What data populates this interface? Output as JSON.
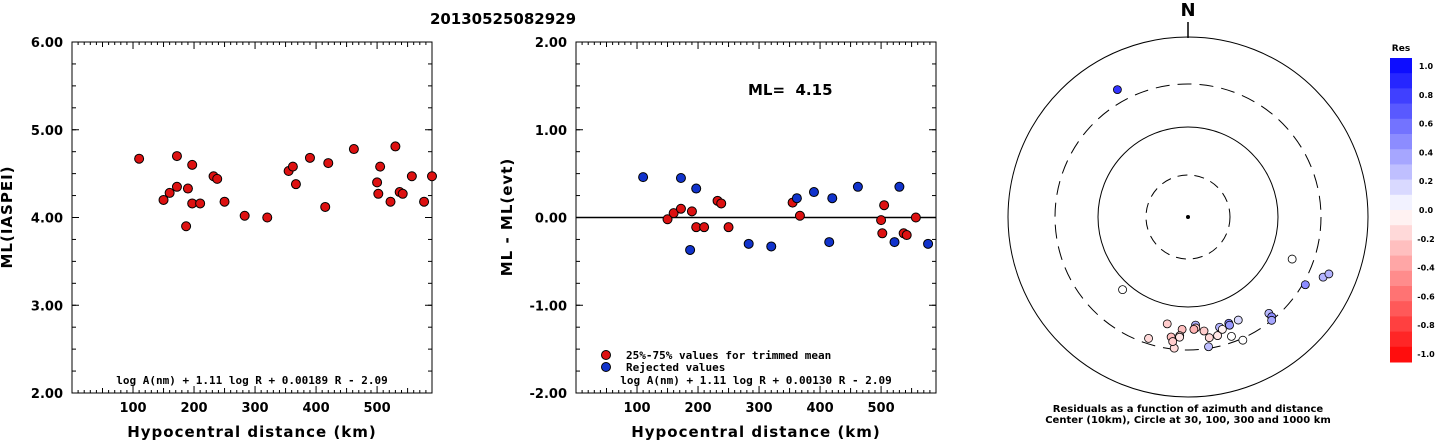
{
  "title": "20130525082929",
  "chart_data": [
    {
      "type": "scatter",
      "xlabel": "Hypocentral distance (km)",
      "ylabel": "ML(IASPEI)",
      "xlim": [
        0,
        590
      ],
      "ylim": [
        2.0,
        6.0
      ],
      "xticks": [
        "100",
        "200",
        "300",
        "400",
        "500"
      ],
      "yticks": [
        "2.00",
        "3.00",
        "4.00",
        "5.00",
        "6.00"
      ],
      "formula": "log A(nm) + 1.11 log R + 0.00189 R - 2.09",
      "series": [
        {
          "color": "#dd1111",
          "points": [
            [
              110,
              4.67
            ],
            [
              150,
              4.2
            ],
            [
              160,
              4.28
            ],
            [
              172,
              4.7
            ],
            [
              172,
              4.35
            ],
            [
              187,
              3.9
            ],
            [
              190,
              4.33
            ],
            [
              197,
              4.6
            ],
            [
              197,
              4.16
            ],
            [
              210,
              4.16
            ],
            [
              232,
              4.47
            ],
            [
              238,
              4.44
            ],
            [
              250,
              4.18
            ],
            [
              283,
              4.02
            ],
            [
              320,
              4.0
            ],
            [
              355,
              4.53
            ],
            [
              362,
              4.58
            ],
            [
              367,
              4.38
            ],
            [
              390,
              4.68
            ],
            [
              415,
              4.12
            ],
            [
              420,
              4.62
            ],
            [
              462,
              4.78
            ],
            [
              500,
              4.4
            ],
            [
              502,
              4.27
            ],
            [
              505,
              4.58
            ],
            [
              522,
              4.18
            ],
            [
              530,
              4.81
            ],
            [
              537,
              4.29
            ],
            [
              542,
              4.27
            ],
            [
              557,
              4.47
            ],
            [
              577,
              4.18
            ],
            [
              590,
              4.47
            ]
          ]
        }
      ]
    },
    {
      "type": "scatter",
      "xlabel": "Hypocentral distance (km)",
      "ylabel": "ML - ML(evt)",
      "xlim": [
        0,
        590
      ],
      "ylim": [
        -2.0,
        2.0
      ],
      "xticks": [
        "100",
        "200",
        "300",
        "400",
        "500"
      ],
      "yticks": [
        "-2.00",
        "-1.00",
        "0.00",
        "1.00",
        "2.00"
      ],
      "annotation": "ML=  4.15",
      "formula": "log A(nm) + 1.11 log R + 0.00130 R - 2.09",
      "legend": [
        "25%-75% values for trimmed mean",
        "Rejected values"
      ],
      "series": [
        {
          "name": "25%-75% values for trimmed mean",
          "color": "#dd1111",
          "points": [
            [
              150,
              -0.02
            ],
            [
              160,
              0.05
            ],
            [
              172,
              0.1
            ],
            [
              190,
              0.07
            ],
            [
              197,
              -0.11
            ],
            [
              210,
              -0.11
            ],
            [
              232,
              0.19
            ],
            [
              238,
              0.16
            ],
            [
              250,
              -0.11
            ],
            [
              355,
              0.17
            ],
            [
              367,
              0.02
            ],
            [
              500,
              -0.03
            ],
            [
              502,
              -0.18
            ],
            [
              505,
              0.14
            ],
            [
              537,
              -0.18
            ],
            [
              542,
              -0.2
            ],
            [
              557,
              0.0
            ]
          ]
        },
        {
          "name": "Rejected values",
          "color": "#1133cc",
          "points": [
            [
              110,
              0.46
            ],
            [
              172,
              0.45
            ],
            [
              187,
              -0.37
            ],
            [
              197,
              0.33
            ],
            [
              283,
              -0.3
            ],
            [
              320,
              -0.33
            ],
            [
              362,
              0.22
            ],
            [
              390,
              0.29
            ],
            [
              415,
              -0.28
            ],
            [
              420,
              0.22
            ],
            [
              462,
              0.35
            ],
            [
              522,
              -0.28
            ],
            [
              530,
              0.35
            ],
            [
              577,
              -0.3
            ]
          ]
        }
      ]
    },
    {
      "type": "scatter",
      "subtype": "polar",
      "north_label": "N",
      "caption": [
        "Residuals as a function of azimuth and distance",
        "Center (10km), Circle at 30, 100, 300 and 1000 km"
      ],
      "colorbar": {
        "title": "Res",
        "min": -1.0,
        "max": 1.0,
        "labels": [
          "1.0",
          "0.8",
          "0.6",
          "0.4",
          "0.2",
          "0.0",
          "-0.2",
          "-0.4",
          "-0.6",
          "-0.8",
          "-1.0"
        ]
      },
      "points": [
        {
          "azimuth": 331,
          "distance": 415,
          "res": 0.8
        },
        {
          "azimuth": 112,
          "distance": 177,
          "res": 0.0
        },
        {
          "azimuth": 120,
          "distance": 320,
          "res": 0.45
        },
        {
          "azimuth": 114,
          "distance": 440,
          "res": 0.3
        },
        {
          "azimuth": 112,
          "distance": 488,
          "res": 0.3
        },
        {
          "azimuth": 140,
          "distance": 250,
          "res": 0.28
        },
        {
          "azimuth": 140,
          "distance": 280,
          "res": 0.45
        },
        {
          "azimuth": 141,
          "distance": 300,
          "res": 0.35
        },
        {
          "azimuth": 154,
          "distance": 188,
          "res": 0.15
        },
        {
          "azimuth": 159,
          "distance": 184,
          "res": 0.5
        },
        {
          "azimuth": 159,
          "distance": 194,
          "res": 0.4
        },
        {
          "azimuth": 164,
          "distance": 188,
          "res": 0.3
        },
        {
          "azimuth": 166,
          "distance": 228,
          "res": -0.1
        },
        {
          "azimuth": 176,
          "distance": 160,
          "res": 0.3
        },
        {
          "azimuth": 176,
          "distance": 172,
          "res": -0.2
        },
        {
          "azimuth": 177,
          "distance": 178,
          "res": -0.3
        },
        {
          "azimuth": 172,
          "distance": 190,
          "res": -0.2
        },
        {
          "azimuth": 186,
          "distance": 292,
          "res": -0.15
        },
        {
          "azimuth": 171,
          "distance": 288,
          "res": 0.25
        },
        {
          "azimuth": 160,
          "distance": 258,
          "res": 0.0
        },
        {
          "azimuth": 156,
          "distance": 315,
          "res": 0.0
        },
        {
          "azimuth": 163,
          "distance": 202,
          "res": -0.05
        },
        {
          "azimuth": 183,
          "distance": 178,
          "res": -0.25
        },
        {
          "azimuth": 191,
          "distance": 162,
          "res": -0.2
        },
        {
          "azimuth": 222,
          "distance": 122,
          "res": 0.0
        },
        {
          "azimuth": 170,
          "distance": 230,
          "res": -0.15
        },
        {
          "azimuth": 184,
          "distance": 210,
          "res": -0.18
        },
        {
          "azimuth": 188,
          "distance": 222,
          "res": -0.25
        },
        {
          "azimuth": 198,
          "distance": 262,
          "res": -0.15
        },
        {
          "azimuth": 187,
          "distance": 248,
          "res": -0.2
        },
        {
          "azimuth": 184,
          "distance": 218,
          "res": -0.1
        }
      ]
    }
  ]
}
